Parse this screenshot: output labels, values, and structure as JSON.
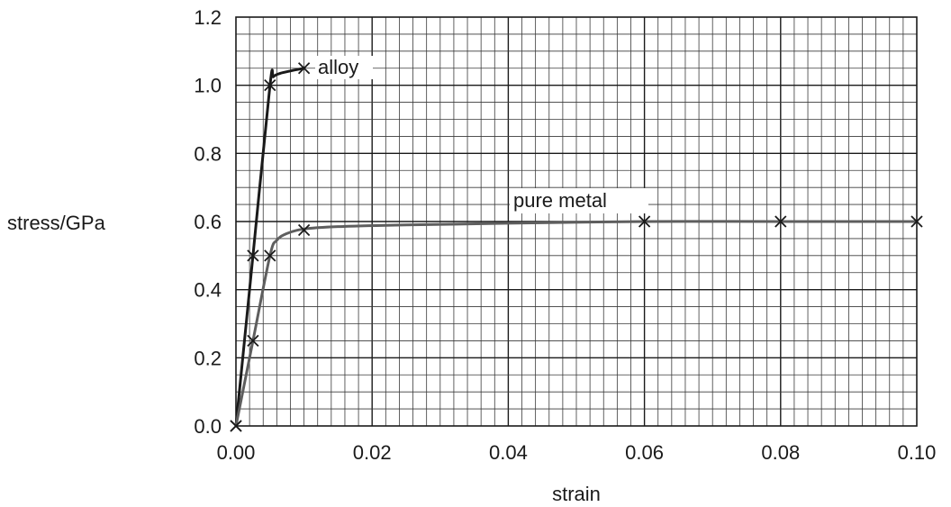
{
  "chart_data": {
    "type": "line",
    "xlabel": "strain",
    "ylabel": "stress/GPa",
    "xlim": [
      0,
      0.1
    ],
    "ylim": [
      0,
      1.2
    ],
    "xticks": [
      "0.00",
      "0.02",
      "0.04",
      "0.06",
      "0.08",
      "0.10"
    ],
    "yticks": [
      "0.0",
      "0.2",
      "0.4",
      "0.6",
      "0.8",
      "1.0",
      "1.2"
    ],
    "grid": true,
    "series": [
      {
        "name": "alloy",
        "color": "#1a1a1a",
        "markers": [
          [
            0,
            0
          ],
          [
            0.0025,
            0.5
          ],
          [
            0.005,
            1.0
          ],
          [
            0.01,
            1.05
          ]
        ],
        "curve": [
          [
            0,
            0
          ],
          [
            0.0025,
            0.5
          ],
          [
            0.005,
            1.0
          ],
          [
            0.0055,
            1.025
          ],
          [
            0.0065,
            1.035
          ],
          [
            0.008,
            1.042
          ],
          [
            0.01,
            1.05
          ]
        ]
      },
      {
        "name": "pure metal",
        "color": "#5e5e5e",
        "markers": [
          [
            0,
            0
          ],
          [
            0.0025,
            0.25
          ],
          [
            0.005,
            0.5
          ],
          [
            0.01,
            0.575
          ],
          [
            0.06,
            0.6
          ],
          [
            0.08,
            0.6
          ],
          [
            0.1,
            0.6
          ]
        ],
        "curve": [
          [
            0,
            0
          ],
          [
            0.0025,
            0.25
          ],
          [
            0.005,
            0.5
          ],
          [
            0.006,
            0.545
          ],
          [
            0.0075,
            0.565
          ],
          [
            0.01,
            0.578
          ],
          [
            0.015,
            0.585
          ],
          [
            0.025,
            0.59
          ],
          [
            0.04,
            0.595
          ],
          [
            0.06,
            0.6
          ],
          [
            0.08,
            0.6
          ],
          [
            0.1,
            0.6
          ]
        ]
      }
    ]
  }
}
